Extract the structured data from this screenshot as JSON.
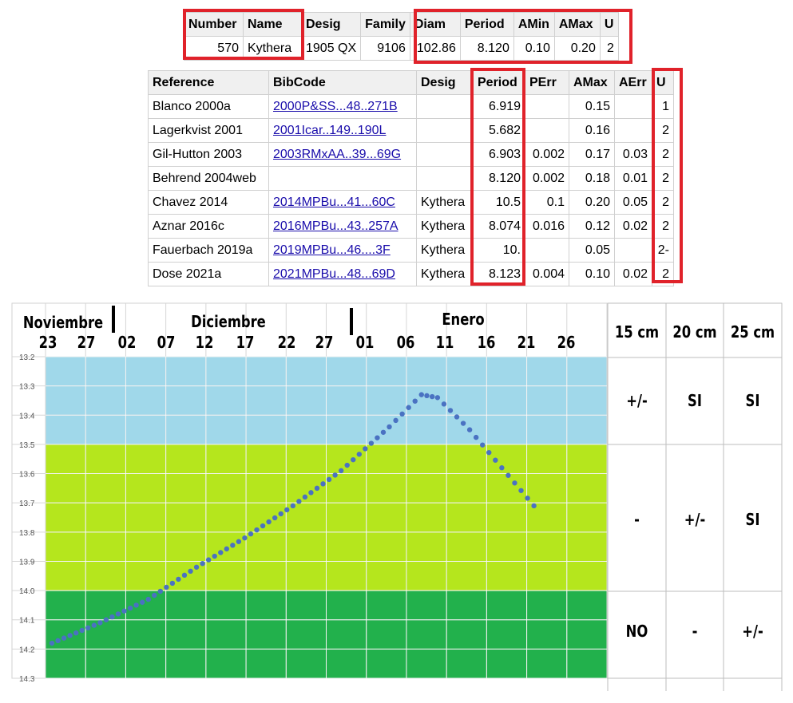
{
  "summary_table": {
    "headers": [
      "Number",
      "Name",
      "Desig",
      "Family",
      "Diam",
      "Period",
      "AMin",
      "AMax",
      "U"
    ],
    "row": [
      "570",
      "Kythera",
      "1905 QX",
      "9106",
      "102.86",
      "8.120",
      "0.10",
      "0.20",
      "2"
    ]
  },
  "reference_table": {
    "headers": [
      "Reference",
      "BibCode",
      "Desig",
      "Period",
      "PErr",
      "AMax",
      "AErr",
      "U"
    ],
    "rows": [
      [
        "Blanco 2000a",
        "2000P&SS...48..271B",
        "",
        "6.919",
        "",
        "0.15",
        "",
        "1"
      ],
      [
        "Lagerkvist 2001",
        "2001Icar..149..190L",
        "",
        "5.682",
        "",
        "0.16",
        "",
        "2"
      ],
      [
        "Gil-Hutton 2003",
        "2003RMxAA..39...69G",
        "",
        "6.903",
        "0.002",
        "0.17",
        "0.03",
        "2"
      ],
      [
        "Behrend 2004web",
        "",
        "",
        "8.120",
        "0.002",
        "0.18",
        "0.01",
        "2"
      ],
      [
        "Chavez 2014",
        "2014MPBu...41...60C",
        "Kythera",
        "10.5",
        "0.1",
        "0.20",
        "0.05",
        "2"
      ],
      [
        "Aznar 2016c",
        "2016MPBu...43..257A",
        "Kythera",
        "8.074",
        "0.016",
        "0.12",
        "0.02",
        "2"
      ],
      [
        "Fauerbach 2019a",
        "2019MPBu...46....3F",
        "Kythera",
        "10.",
        "",
        "0.05",
        "",
        "2-"
      ],
      [
        "Dose 2021a",
        "2021MPBu...48...69D",
        "Kythera",
        "8.123",
        "0.004",
        "0.10",
        "0.02",
        "2"
      ]
    ]
  },
  "chart_data": {
    "type": "scatter",
    "title": "",
    "months": [
      "Noviembre",
      "Diciembre",
      "Enero"
    ],
    "x_ticks": [
      "23",
      "27",
      "02",
      "07",
      "12",
      "17",
      "22",
      "27",
      "01",
      "06",
      "11",
      "16",
      "21",
      "26"
    ],
    "x_tick_days": [
      0,
      4,
      9,
      14,
      19,
      24,
      29,
      34,
      39,
      44,
      49,
      54,
      59,
      64
    ],
    "y_ticks": [
      "13.2",
      "13.3",
      "13.4",
      "13.5",
      "13.6",
      "13.7",
      "13.8",
      "13.9",
      "14.0",
      "14.1",
      "14.2",
      "14.3"
    ],
    "ylim": [
      13.2,
      14.3
    ],
    "y_inverted": true,
    "bands": [
      {
        "from": 13.2,
        "to": 13.5,
        "color": "#a0d8ea"
      },
      {
        "from": 13.5,
        "to": 14.0,
        "color": "#b5e61d"
      },
      {
        "from": 14.0,
        "to": 14.3,
        "color": "#22b14c"
      }
    ],
    "series": [
      {
        "color": "#4a72c2",
        "points": [
          [
            0,
            14.18
          ],
          [
            6,
            14.11
          ],
          [
            12,
            14.03
          ],
          [
            18,
            13.92
          ],
          [
            24,
            13.82
          ],
          [
            30,
            13.71
          ],
          [
            36,
            13.59
          ],
          [
            42,
            13.44
          ],
          [
            46,
            13.33
          ],
          [
            48,
            13.34
          ],
          [
            52,
            13.45
          ],
          [
            56,
            13.58
          ],
          [
            60,
            13.71
          ]
        ]
      }
    ],
    "table": {
      "headers": [
        "15 cm",
        "20 cm",
        "25 cm"
      ],
      "rows": [
        [
          "+/-",
          "SI",
          "SI"
        ],
        [
          "-",
          "+/-",
          "SI"
        ],
        [
          "NO",
          "-",
          "+/-"
        ]
      ]
    }
  }
}
